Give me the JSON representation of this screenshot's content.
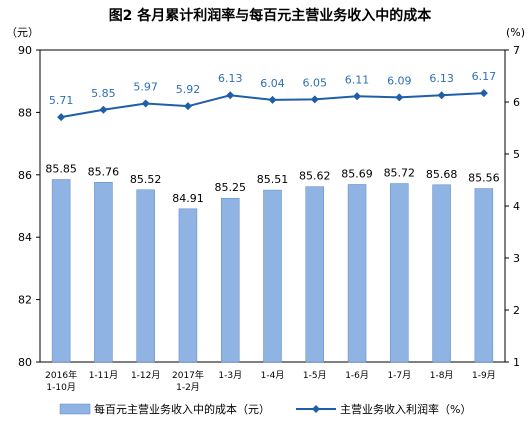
{
  "chart_data": {
    "type": "bar+line",
    "title": "图2  各月累计利润率与每百元主营业务收入中的成本",
    "y_left_unit": "（元）",
    "y_right_unit": "(%)",
    "categories": [
      [
        "2016年",
        "1-10月"
      ],
      [
        "1-11月"
      ],
      [
        "1-12月"
      ],
      [
        "2017年",
        "1-2月"
      ],
      [
        "1-3月"
      ],
      [
        "1-4月"
      ],
      [
        "1-5月"
      ],
      [
        "1-6月"
      ],
      [
        "1-7月"
      ],
      [
        "1-8月"
      ],
      [
        "1-9月"
      ]
    ],
    "y_left": {
      "min": 80,
      "max": 90,
      "ticks": [
        80,
        82,
        84,
        86,
        88,
        90
      ]
    },
    "y_right": {
      "min": 1,
      "max": 7,
      "ticks": [
        1,
        2,
        3,
        4,
        5,
        6,
        7
      ]
    },
    "series": [
      {
        "name": "每百元主营业务收入中的成本（元）",
        "type": "bar",
        "axis": "left",
        "color": "#8fb4e3",
        "values": [
          85.85,
          85.76,
          85.52,
          84.91,
          85.25,
          85.51,
          85.62,
          85.69,
          85.72,
          85.68,
          85.56
        ],
        "labels": [
          "85.85",
          "85.76",
          "85.52",
          "84.91",
          "85.25",
          "85.51",
          "85.62",
          "85.69",
          "85.72",
          "85.68",
          "85.56"
        ]
      },
      {
        "name": "主营业务收入利润率（%）",
        "type": "line",
        "axis": "right",
        "color": "#1f5ea8",
        "label_color": "#2f6fb5",
        "values": [
          5.71,
          5.85,
          5.97,
          5.92,
          6.13,
          6.04,
          6.05,
          6.11,
          6.09,
          6.13,
          6.17
        ],
        "labels": [
          "5.71",
          "5.85",
          "5.97",
          "5.92",
          "6.13",
          "6.04",
          "6.05",
          "6.11",
          "6.09",
          "6.13",
          "6.17"
        ]
      }
    ],
    "legend_position": "bottom",
    "grid": false
  }
}
